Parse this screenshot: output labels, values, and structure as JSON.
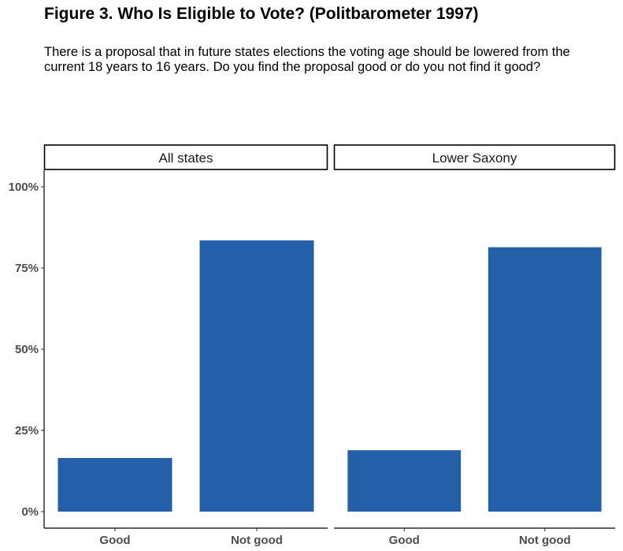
{
  "title": "Figure 3. Who Is Eligible to Vote? (Politbarometer 1997)",
  "subtitle": "There is a proposal that in future states elections the voting age should be lowered from the current 18 years to 16 years. Do you find the proposal good or do you not find it good?",
  "chart_data": {
    "type": "bar",
    "facets": [
      "All states",
      "Lower Saxony"
    ],
    "categories": [
      "Good",
      "Not good"
    ],
    "series": [
      {
        "facet": "All states",
        "values": [
          16.5,
          83.5
        ]
      },
      {
        "facet": "Lower Saxony",
        "values": [
          18.9,
          81.4
        ]
      }
    ],
    "y_unit": "%",
    "ylim": [
      0,
      105
    ],
    "yticks": [
      0,
      25,
      50,
      75,
      100
    ],
    "ytick_labels": [
      "0%",
      "25%",
      "50%",
      "75%",
      "100%"
    ],
    "bar_color": "#2460a7",
    "grid": false,
    "legend": "none"
  }
}
